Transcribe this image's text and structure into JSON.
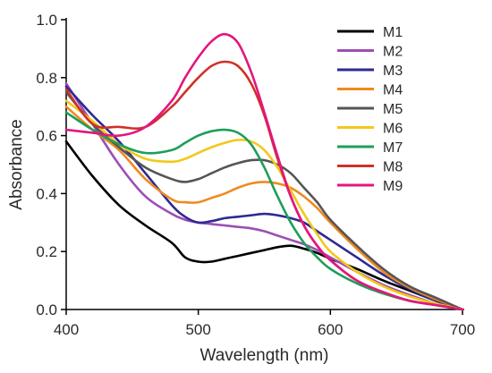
{
  "chart_data": {
    "type": "line",
    "xlabel": "Wavelength (nm)",
    "ylabel": "Absorbance",
    "xlim": [
      400,
      700
    ],
    "ylim": [
      0.0,
      1.0
    ],
    "xticks": [
      400,
      500,
      600,
      700
    ],
    "xtick_labels": [
      "400",
      "500",
      "600",
      "700"
    ],
    "yticks": [
      0.0,
      0.2,
      0.4,
      0.6,
      0.8,
      1.0
    ],
    "ytick_labels": [
      "0.0",
      "0.2",
      "0.4",
      "0.6",
      "0.8",
      "1.0"
    ],
    "grid": false,
    "legend_position": "top-right",
    "x": [
      400,
      420,
      440,
      460,
      480,
      490,
      500,
      510,
      520,
      530,
      540,
      550,
      560,
      570,
      580,
      590,
      600,
      620,
      640,
      660,
      680,
      700
    ],
    "series": [
      {
        "name": "M1",
        "color": "#000000",
        "values": [
          0.58,
          0.46,
          0.36,
          0.29,
          0.23,
          0.18,
          0.165,
          0.165,
          0.175,
          0.185,
          0.195,
          0.205,
          0.215,
          0.22,
          0.21,
          0.195,
          0.175,
          0.14,
          0.1,
          0.065,
          0.03,
          0.0
        ]
      },
      {
        "name": "M2",
        "color": "#9b4fb5",
        "values": [
          0.78,
          0.64,
          0.5,
          0.39,
          0.33,
          0.31,
          0.3,
          0.295,
          0.29,
          0.285,
          0.28,
          0.27,
          0.255,
          0.24,
          0.225,
          0.205,
          0.18,
          0.13,
          0.085,
          0.05,
          0.02,
          0.0
        ]
      },
      {
        "name": "M3",
        "color": "#2e2a91",
        "values": [
          0.77,
          0.67,
          0.58,
          0.47,
          0.36,
          0.32,
          0.3,
          0.305,
          0.315,
          0.32,
          0.325,
          0.33,
          0.325,
          0.315,
          0.3,
          0.27,
          0.24,
          0.18,
          0.12,
          0.07,
          0.03,
          0.0
        ]
      },
      {
        "name": "M4",
        "color": "#f0891f",
        "values": [
          0.7,
          0.62,
          0.55,
          0.45,
          0.38,
          0.37,
          0.37,
          0.385,
          0.4,
          0.42,
          0.435,
          0.44,
          0.435,
          0.42,
          0.39,
          0.35,
          0.3,
          0.21,
          0.13,
          0.075,
          0.035,
          0.0
        ]
      },
      {
        "name": "M5",
        "color": "#555555",
        "values": [
          0.75,
          0.64,
          0.56,
          0.49,
          0.45,
          0.44,
          0.45,
          0.47,
          0.49,
          0.505,
          0.515,
          0.515,
          0.5,
          0.47,
          0.42,
          0.37,
          0.31,
          0.22,
          0.14,
          0.08,
          0.04,
          0.0
        ]
      },
      {
        "name": "M6",
        "color": "#f2c81a",
        "values": [
          0.72,
          0.65,
          0.57,
          0.52,
          0.51,
          0.52,
          0.54,
          0.56,
          0.575,
          0.585,
          0.58,
          0.55,
          0.49,
          0.41,
          0.33,
          0.26,
          0.2,
          0.13,
          0.08,
          0.045,
          0.02,
          0.0
        ]
      },
      {
        "name": "M7",
        "color": "#1f9e5a",
        "values": [
          0.68,
          0.62,
          0.57,
          0.54,
          0.55,
          0.575,
          0.6,
          0.615,
          0.62,
          0.61,
          0.57,
          0.49,
          0.39,
          0.3,
          0.23,
          0.18,
          0.14,
          0.09,
          0.055,
          0.03,
          0.015,
          0.0
        ]
      },
      {
        "name": "M8",
        "color": "#cf3027",
        "values": [
          0.76,
          0.64,
          0.63,
          0.63,
          0.7,
          0.75,
          0.8,
          0.84,
          0.855,
          0.84,
          0.78,
          0.67,
          0.52,
          0.39,
          0.29,
          0.22,
          0.17,
          0.1,
          0.06,
          0.03,
          0.015,
          0.0
        ]
      },
      {
        "name": "M9",
        "color": "#e3167f",
        "values": [
          0.62,
          0.61,
          0.6,
          0.63,
          0.72,
          0.8,
          0.87,
          0.925,
          0.95,
          0.92,
          0.82,
          0.68,
          0.53,
          0.39,
          0.29,
          0.22,
          0.17,
          0.1,
          0.06,
          0.03,
          0.015,
          0.0
        ]
      }
    ]
  }
}
